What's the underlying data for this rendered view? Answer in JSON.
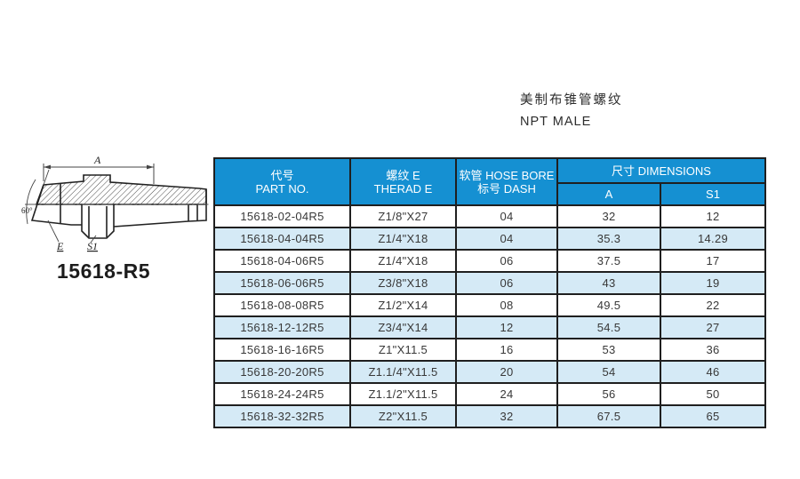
{
  "page": {
    "title_cn": "美制布锥管螺纹",
    "title_en": "NPT MALE"
  },
  "drawing": {
    "part_number": "15618-R5",
    "labels": {
      "dim_a": "A",
      "angle": "60°",
      "e": "E",
      "s1": "S1"
    }
  },
  "table": {
    "headers": {
      "part_no_cn": "代号",
      "part_no_en": "PART NO.",
      "thread_cn": "螺纹  E",
      "thread_en": "THERAD E",
      "hose_cn": "软管 HOSE BORE",
      "hose_en": "标号 DASH",
      "dimensions": "尺寸 DIMENSIONS",
      "col_a": "A",
      "col_s1": "S1"
    },
    "rows": [
      [
        "15618-02-04R5",
        "Z1/8\"X27",
        "04",
        "32",
        "12"
      ],
      [
        "15618-04-04R5",
        "Z1/4\"X18",
        "04",
        "35.3",
        "14.29"
      ],
      [
        "15618-04-06R5",
        "Z1/4\"X18",
        "06",
        "37.5",
        "17"
      ],
      [
        "15618-06-06R5",
        "Z3/8\"X18",
        "06",
        "43",
        "19"
      ],
      [
        "15618-08-08R5",
        "Z1/2\"X14",
        "08",
        "49.5",
        "22"
      ],
      [
        "15618-12-12R5",
        "Z3/4\"X14",
        "12",
        "54.5",
        "27"
      ],
      [
        "15618-16-16R5",
        "Z1\"X11.5",
        "16",
        "53",
        "36"
      ],
      [
        "15618-20-20R5",
        "Z1.1/4\"X11.5",
        "20",
        "54",
        "46"
      ],
      [
        "15618-24-24R5",
        "Z1.1/2\"X11.5",
        "24",
        "56",
        "50"
      ],
      [
        "15618-32-32R5",
        "Z2\"X11.5",
        "32",
        "67.5",
        "65"
      ]
    ]
  },
  "colors": {
    "header_bg": "#1590d2",
    "row_alt_bg": "#d5eaf6",
    "border": "#1f1f1f",
    "line": "#333333"
  }
}
